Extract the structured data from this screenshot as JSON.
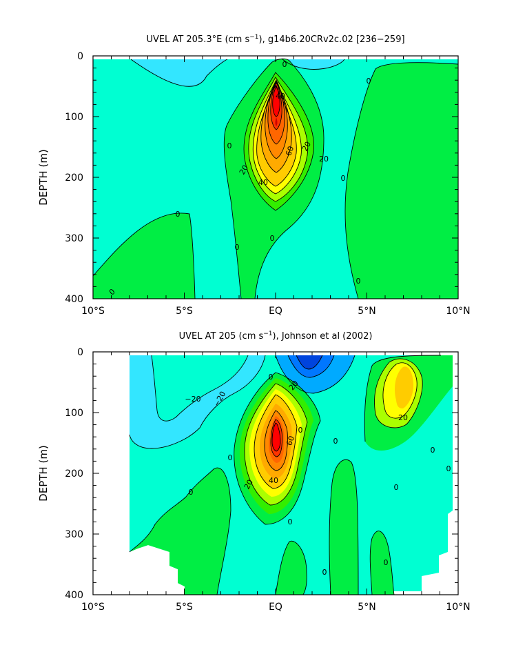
{
  "chart_data": [
    {
      "type": "contour",
      "title": "UVEL AT 205.3°E (cm s",
      "title_sup": "−1",
      "title_rest": "), g14b6.20CRv2c.02  [236−259]",
      "ylabel": "DEPTH (m)",
      "xlabel": "",
      "x_ticks": [
        "10°S",
        "5°S",
        "EQ",
        "5°N",
        "10°N"
      ],
      "x_tick_values": [
        -10,
        -5,
        0,
        5,
        10
      ],
      "y_ticks": [
        "0",
        "100",
        "200",
        "300",
        "400"
      ],
      "y_tick_values": [
        0,
        100,
        200,
        300,
        400
      ],
      "xlim": [
        -10,
        10
      ],
      "ylim": [
        0,
        400
      ],
      "y_inverted": true,
      "contour_interval": 10,
      "contour_labels": [
        "0",
        "0",
        "0",
        "0",
        "0",
        "0",
        "0",
        "0",
        "20",
        "20",
        "20",
        "40",
        "40",
        "60"
      ],
      "core": {
        "lat": 0.0,
        "depth": 110,
        "max_speed": 100
      },
      "colors": {
        "negative_weak": "#00ffd2",
        "negative": "#33e6ff",
        "zero": "#00ee44",
        "pos10": "#33ee00",
        "pos20": "#aaff00",
        "pos30": "#ffff00",
        "pos40": "#ffcc00",
        "pos50": "#ff9900",
        "pos70": "#ff6600",
        "pos90": "#ff0000"
      }
    },
    {
      "type": "contour",
      "title": "UVEL AT 205 (cm s",
      "title_sup": "−1",
      "title_rest": "), Johnson et al (2002)",
      "ylabel": "DEPTH (m)",
      "xlabel": "",
      "x_ticks": [
        "10°S",
        "5°S",
        "EQ",
        "5°N",
        "10°N"
      ],
      "x_tick_values": [
        -10,
        -5,
        0,
        5,
        10
      ],
      "y_ticks": [
        "0",
        "100",
        "200",
        "300",
        "400"
      ],
      "y_tick_values": [
        0,
        100,
        200,
        300,
        400
      ],
      "xlim": [
        -10,
        10
      ],
      "ylim": [
        0,
        400
      ],
      "y_inverted": true,
      "contour_interval": 10,
      "contour_labels": [
        "−20",
        "−20",
        "20",
        "20",
        "20",
        "40",
        "60",
        "0",
        "0",
        "0",
        "0",
        "0",
        "0",
        "0",
        "0",
        "0",
        "0",
        "0"
      ],
      "core": {
        "lat": -0.2,
        "depth": 130,
        "max_speed": 100
      },
      "secondary_core": {
        "lat": 6.5,
        "depth": 50,
        "max_speed": 40
      },
      "westward_core": {
        "lat": 1.8,
        "depth": 15,
        "min_speed": -50
      },
      "data_coverage": {
        "west": -8,
        "east": 9.8
      },
      "colors": {
        "negative_strong": "#0055ff",
        "negative_mid": "#00aaff",
        "negative": "#33e6ff",
        "negative_weak": "#00ffd2",
        "zero": "#00ee44",
        "pos20": "#aaff00",
        "pos30": "#ffff00",
        "pos40": "#ffcc00",
        "pos50": "#ff9900",
        "pos70": "#ff6600",
        "pos90": "#ff0000"
      }
    }
  ]
}
